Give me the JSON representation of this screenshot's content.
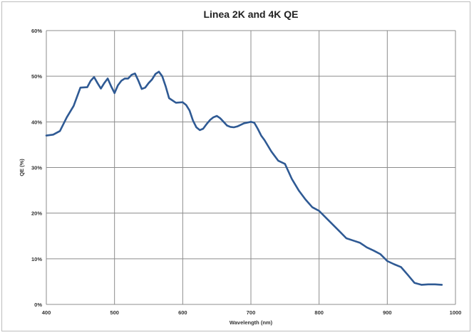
{
  "chart_data": {
    "type": "line",
    "title": "Linea 2K and 4K QE",
    "xlabel": "Wavelength (nm)",
    "ylabel": "QE (%)",
    "xlim": [
      400,
      1000
    ],
    "ylim": [
      0,
      60
    ],
    "xticks": [
      400,
      500,
      600,
      700,
      800,
      900,
      1000
    ],
    "yticks": [
      0,
      10,
      20,
      30,
      40,
      50,
      60
    ],
    "ytick_labels": [
      "0%",
      "10%",
      "20%",
      "30%",
      "40%",
      "50%",
      "60%"
    ],
    "grid": true,
    "series_color": "#2f5a94",
    "series": [
      {
        "x": [
          400,
          410,
          420,
          430,
          440,
          450,
          460,
          465,
          470,
          475,
          480,
          485,
          490,
          495,
          500,
          505,
          510,
          515,
          520,
          525,
          530,
          535,
          540,
          545,
          550,
          555,
          560,
          565,
          570,
          575,
          580,
          590,
          600,
          605,
          610,
          615,
          620,
          625,
          630,
          635,
          640,
          645,
          650,
          655,
          660,
          665,
          670,
          675,
          680,
          690,
          700,
          705,
          710,
          715,
          720,
          730,
          740,
          750,
          760,
          770,
          780,
          790,
          800,
          810,
          820,
          830,
          840,
          850,
          860,
          870,
          880,
          890,
          900,
          910,
          920,
          930,
          940,
          950,
          960,
          970,
          980
        ],
        "y": [
          37,
          37.2,
          38,
          41,
          43.5,
          47.5,
          47.6,
          49,
          49.8,
          48.5,
          47.3,
          48.5,
          49.5,
          47.8,
          46.3,
          48,
          49,
          49.5,
          49.5,
          50.3,
          50.6,
          49,
          47.2,
          47.5,
          48.5,
          49.3,
          50.5,
          51,
          50,
          47.8,
          45.2,
          44.2,
          44.3,
          43.7,
          42.5,
          40.3,
          38.8,
          38.2,
          38.5,
          39.5,
          40.4,
          41,
          41.3,
          40.8,
          40,
          39.2,
          38.9,
          38.8,
          39,
          39.7,
          40,
          39.8,
          38.5,
          37,
          36,
          33.5,
          31.5,
          30.8,
          27.5,
          25,
          23,
          21.3,
          20.5,
          19,
          17.5,
          16,
          14.5,
          14,
          13.5,
          12.5,
          11.8,
          11,
          9.5,
          8.8,
          8.2,
          6.5,
          4.7,
          4.3,
          4.4,
          4.4,
          4.3
        ]
      }
    ]
  }
}
